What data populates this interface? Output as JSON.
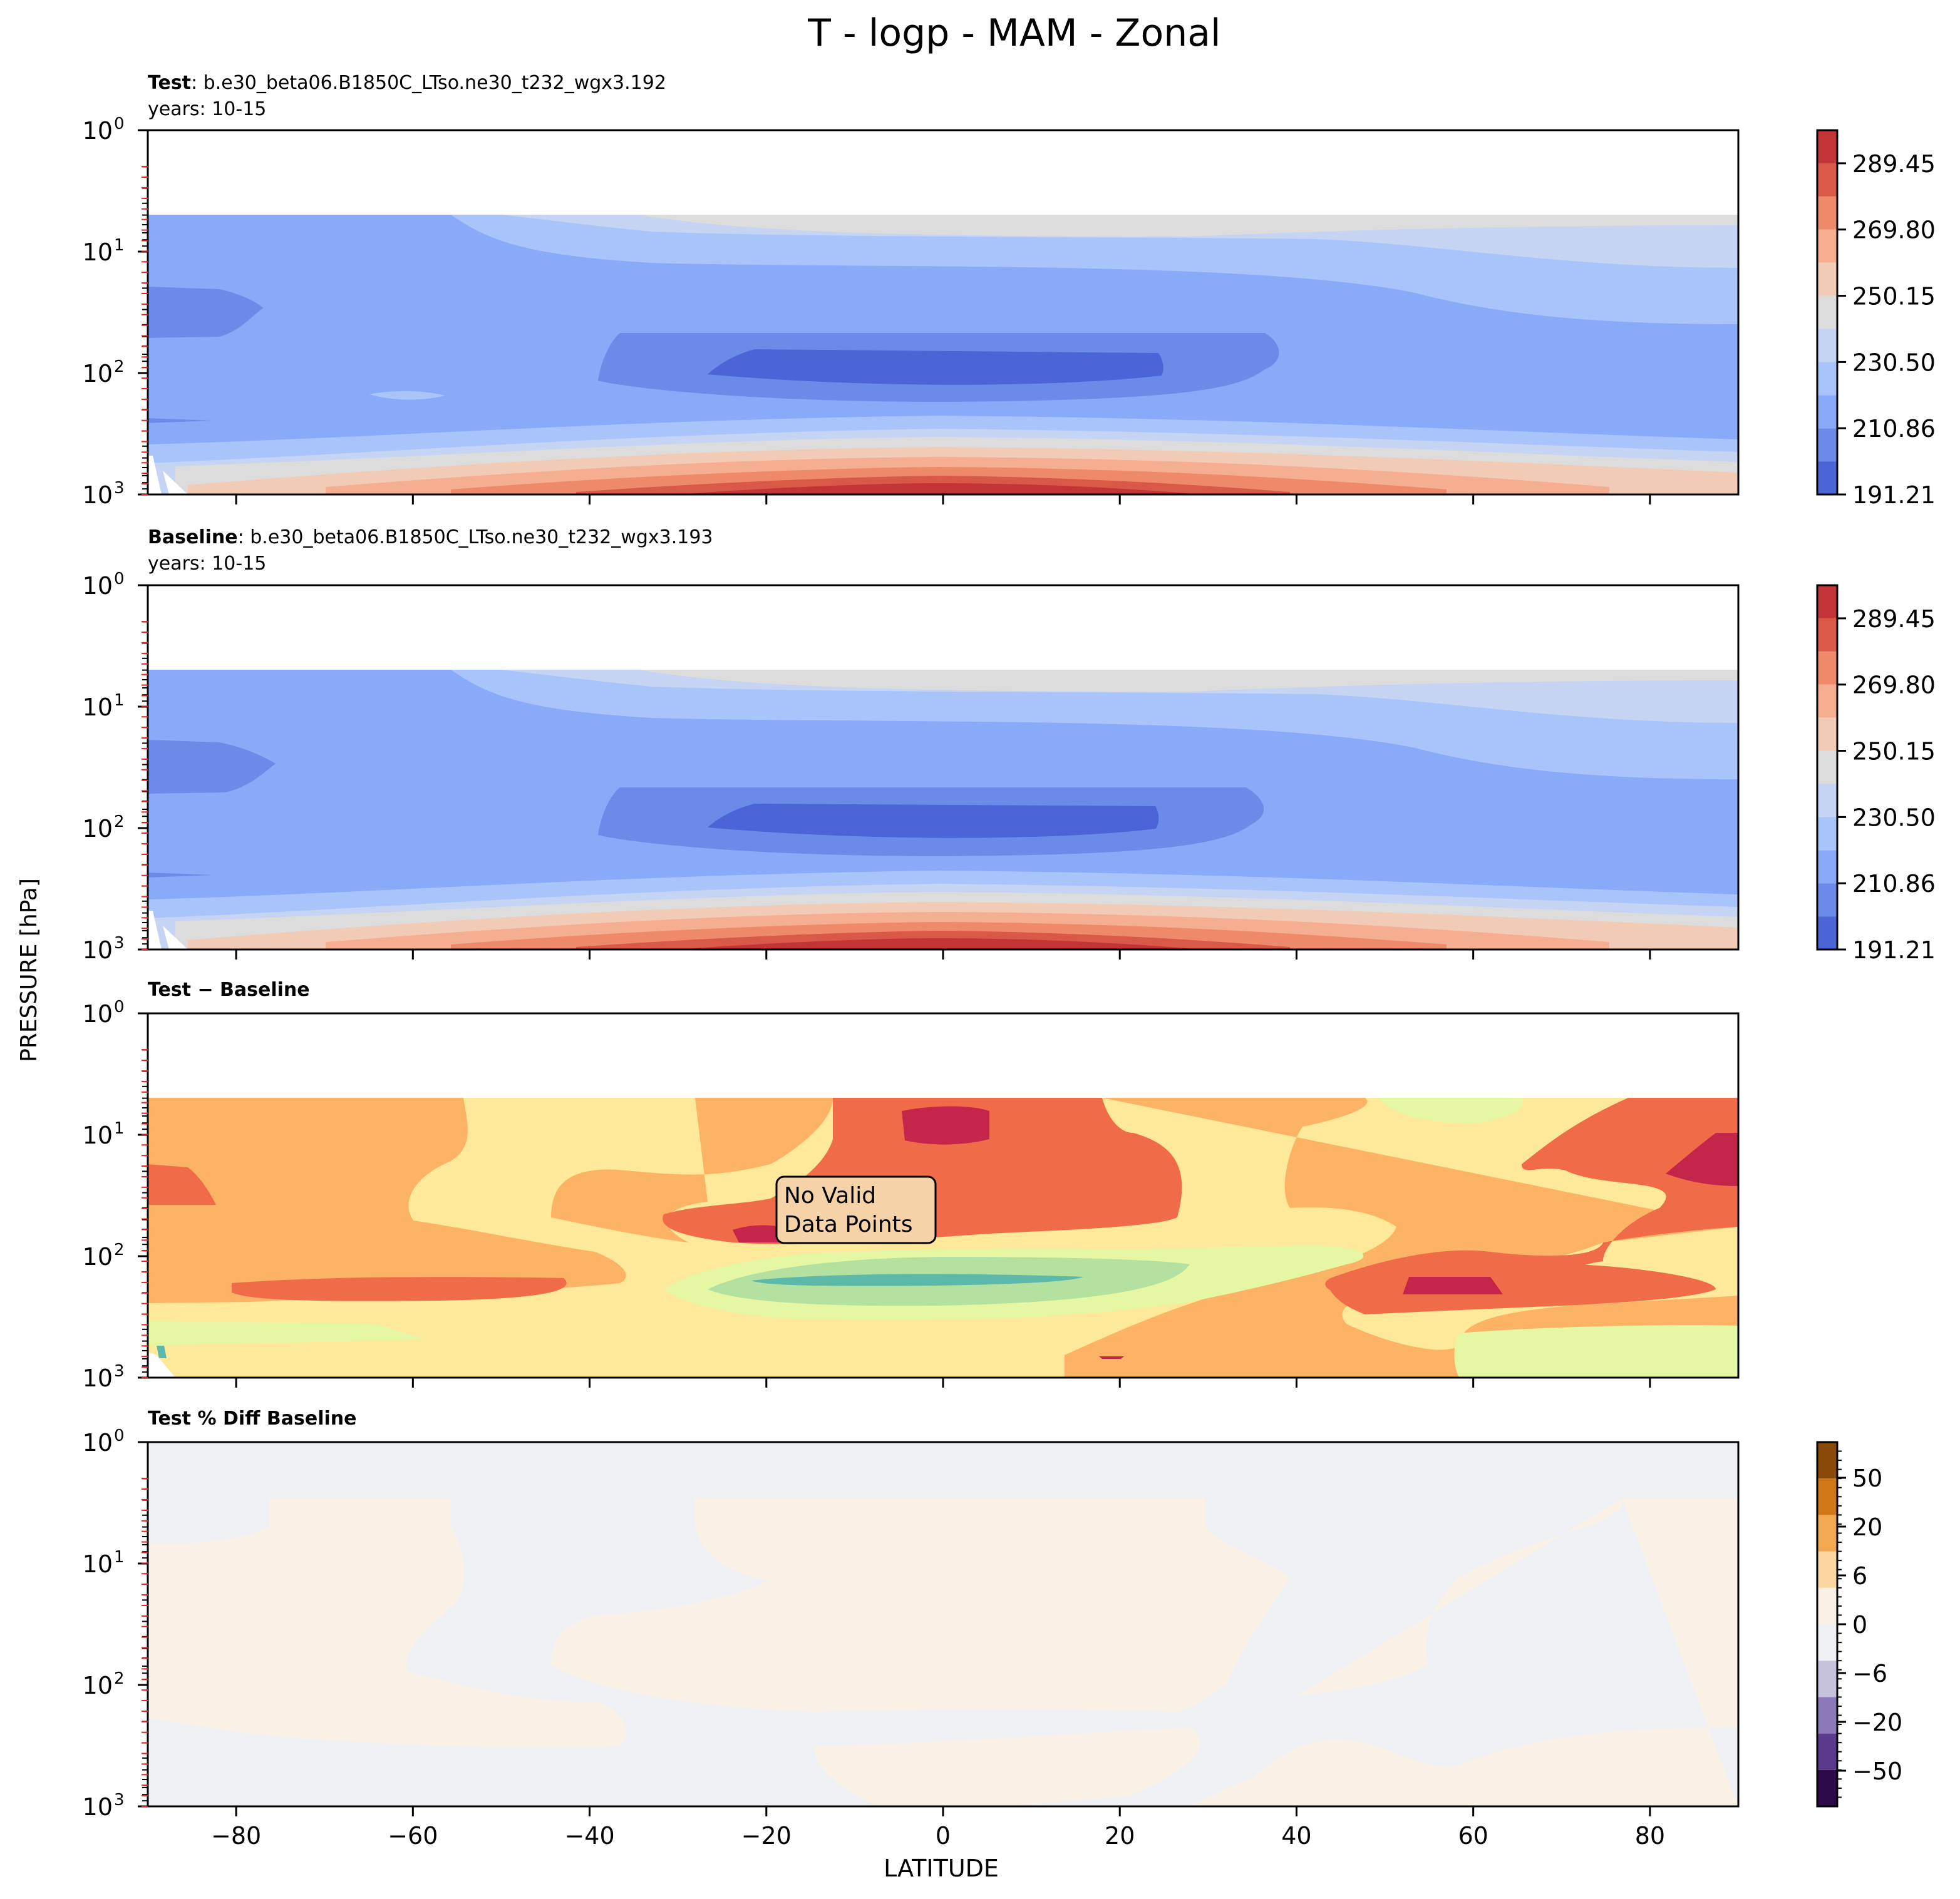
{
  "figure": {
    "suptitle": "T - logp - MAM - Zonal",
    "ylabel": "PRESSURE [hPa]",
    "xlabel": "LATITUDE",
    "annotation": "No Valid\nData Points"
  },
  "chart_data": [
    {
      "type": "heatmap",
      "panel": "test",
      "title_bold": "Test",
      "title_rest": ": b.e30_beta06.B1850C_LTso.ne30_t232_wgx3.192",
      "subtitle": "years: 10-15",
      "xlim": [
        -90,
        90
      ],
      "ylim_hPa": [
        1000,
        1
      ],
      "ytick_labels": [
        "10^0",
        "10^1",
        "10^2",
        "10^3"
      ],
      "colorbar": {
        "levels": [
          191.21,
          201.03,
          210.86,
          220.68,
          230.5,
          240.32,
          250.15,
          259.97,
          269.8,
          279.62,
          289.45,
          299.27
        ],
        "tick_labels": [
          "191.21",
          "210.86",
          "230.50",
          "250.15",
          "269.80",
          "289.45"
        ],
        "colors": [
          "#4b64d6",
          "#6a8ce8",
          "#88aaf8",
          "#a8c4fb",
          "#c4d4f2",
          "#dddcdc",
          "#f2cbb7",
          "#f5ae90",
          "#ee8a6a",
          "#d95847",
          "#c23435"
        ]
      }
    },
    {
      "type": "heatmap",
      "panel": "baseline",
      "title_bold": "Baseline",
      "title_rest": ": b.e30_beta06.B1850C_LTso.ne30_t232_wgx3.193",
      "subtitle": "years: 10-15",
      "xlim": [
        -90,
        90
      ],
      "ylim_hPa": [
        1000,
        1
      ],
      "ytick_labels": [
        "10^0",
        "10^1",
        "10^2",
        "10^3"
      ],
      "colorbar": {
        "levels": [
          191.21,
          201.03,
          210.86,
          220.68,
          230.5,
          240.32,
          250.15,
          259.97,
          269.8,
          279.62,
          289.45,
          299.27
        ],
        "tick_labels": [
          "191.21",
          "210.86",
          "230.50",
          "250.15",
          "269.80",
          "289.45"
        ],
        "colors": [
          "#4b64d6",
          "#6a8ce8",
          "#88aaf8",
          "#a8c4fb",
          "#c4d4f2",
          "#dddcdc",
          "#f2cbb7",
          "#f5ae90",
          "#ee8a6a",
          "#d95847",
          "#c23435"
        ]
      }
    },
    {
      "type": "heatmap",
      "panel": "diff",
      "title_bold": "Test − Baseline",
      "xlim": [
        -90,
        90
      ],
      "ylim_hPa": [
        1000,
        1
      ],
      "ytick_labels": [
        "10^0",
        "10^1",
        "10^2",
        "10^3"
      ],
      "colors": [
        "#5cb8a8",
        "#b4e0a0",
        "#e6f7a4",
        "#fee899",
        "#fdb366",
        "#f06c48",
        "#c4254a"
      ]
    },
    {
      "type": "heatmap",
      "panel": "pctdiff",
      "title_bold": "Test % Diff Baseline",
      "xlim": [
        -90,
        90
      ],
      "ylim_hPa": [
        1000,
        1
      ],
      "xticks": [
        -80,
        -60,
        -40,
        -20,
        0,
        20,
        40,
        60,
        80
      ],
      "xtick_labels": [
        "−80",
        "−60",
        "−40",
        "−20",
        "0",
        "20",
        "40",
        "60",
        "80"
      ],
      "ytick_labels": [
        "10^0",
        "10^1",
        "10^2",
        "10^3"
      ],
      "colorbar": {
        "tick_values": [
          -50,
          -20,
          -6,
          0,
          6,
          20,
          50
        ],
        "tick_labels": [
          "−50",
          "−20",
          "−6",
          "0",
          "6",
          "20",
          "50"
        ],
        "colors": [
          "#2d0a4a",
          "#5a3a8c",
          "#8c7ab8",
          "#c6c2de",
          "#eff0f4",
          "#f9f1e6",
          "#fbd6a0",
          "#f2a850",
          "#d07818",
          "#8a4a0a"
        ]
      }
    }
  ]
}
